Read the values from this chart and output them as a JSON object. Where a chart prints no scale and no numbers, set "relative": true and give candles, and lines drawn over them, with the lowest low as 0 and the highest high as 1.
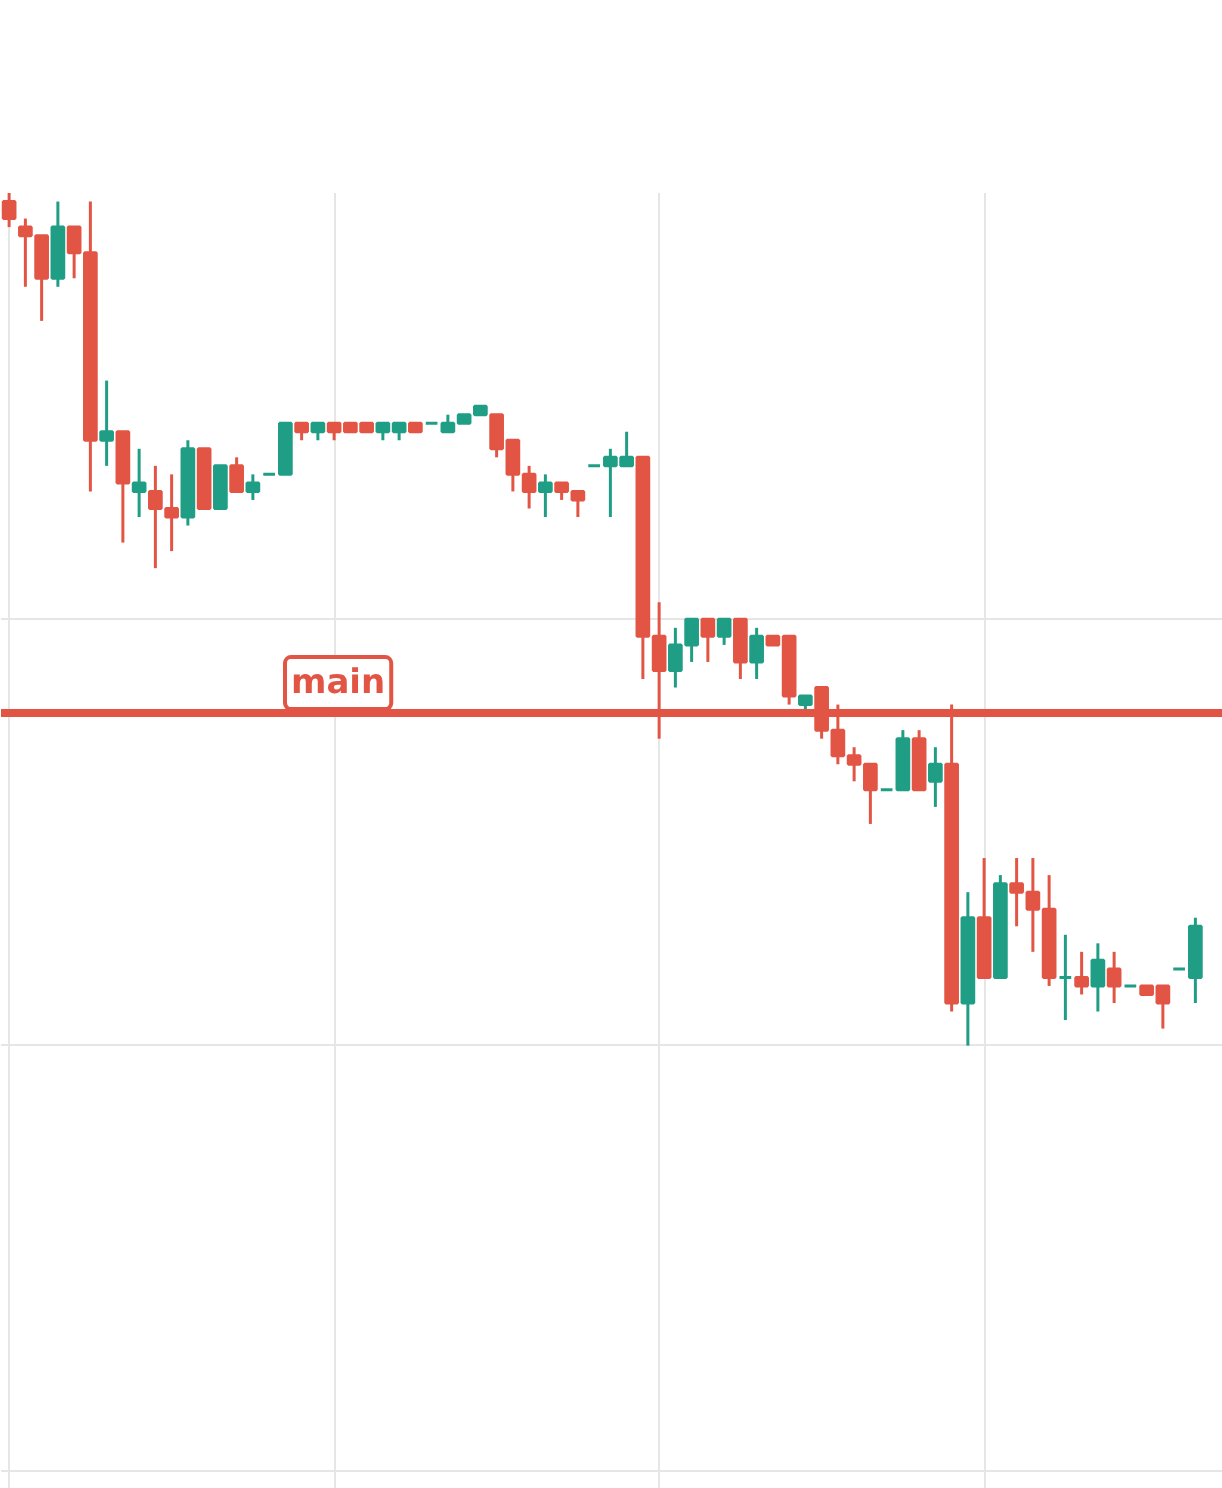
{
  "chart_data": {
    "type": "candlestick",
    "relative": true,
    "grid": true,
    "tick_labels": false,
    "categories": [
      null,
      null,
      null,
      null,
      null,
      null,
      null,
      null,
      null,
      null,
      null,
      null,
      null,
      null,
      null,
      null,
      null,
      null,
      null,
      null,
      null,
      null,
      null,
      null,
      null,
      null,
      null,
      null,
      null,
      null,
      null,
      null,
      null,
      null,
      null,
      null,
      null,
      null,
      null,
      null,
      null,
      null,
      null,
      null,
      null,
      null,
      null,
      null,
      null,
      null,
      null,
      null,
      null,
      null,
      null,
      null,
      null,
      null,
      null,
      null,
      null,
      null,
      null,
      null,
      null,
      null,
      null,
      null,
      null,
      null,
      null,
      null,
      null,
      null
    ],
    "ohlc": [
      [
        0.99,
        1.0,
        0.96,
        0.97
      ],
      [
        0.96,
        0.97,
        0.89,
        0.95
      ],
      [
        0.95,
        0.95,
        0.85,
        0.9
      ],
      [
        0.9,
        0.99,
        0.89,
        0.96
      ],
      [
        0.96,
        0.96,
        0.9,
        0.93
      ],
      [
        0.93,
        0.99,
        0.65,
        0.71
      ],
      [
        0.71,
        0.78,
        0.68,
        0.72
      ],
      [
        0.72,
        0.72,
        0.59,
        0.66
      ],
      [
        0.65,
        0.7,
        0.62,
        0.66
      ],
      [
        0.65,
        0.68,
        0.56,
        0.63
      ],
      [
        0.63,
        0.67,
        0.58,
        0.62
      ],
      [
        0.62,
        0.71,
        0.61,
        0.7
      ],
      [
        0.7,
        0.7,
        0.63,
        0.63
      ],
      [
        0.63,
        0.68,
        0.63,
        0.68
      ],
      [
        0.68,
        0.69,
        0.65,
        0.65
      ],
      [
        0.65,
        0.67,
        0.64,
        0.66
      ],
      [
        0.67,
        0.67,
        0.67,
        0.67
      ],
      [
        0.67,
        0.73,
        0.67,
        0.73
      ],
      [
        0.73,
        0.73,
        0.71,
        0.72
      ],
      [
        0.72,
        0.73,
        0.71,
        0.73
      ],
      [
        0.73,
        0.73,
        0.71,
        0.72
      ],
      [
        0.73,
        0.73,
        0.72,
        0.72
      ],
      [
        0.73,
        0.73,
        0.72,
        0.72
      ],
      [
        0.72,
        0.73,
        0.71,
        0.73
      ],
      [
        0.72,
        0.73,
        0.71,
        0.73
      ],
      [
        0.73,
        0.73,
        0.72,
        0.72
      ],
      [
        0.73,
        0.73,
        0.73,
        0.73
      ],
      [
        0.72,
        0.74,
        0.72,
        0.73
      ],
      [
        0.73,
        0.74,
        0.73,
        0.74
      ],
      [
        0.74,
        0.75,
        0.74,
        0.75
      ],
      [
        0.74,
        0.74,
        0.69,
        0.7
      ],
      [
        0.71,
        0.71,
        0.65,
        0.67
      ],
      [
        0.67,
        0.68,
        0.63,
        0.65
      ],
      [
        0.65,
        0.67,
        0.62,
        0.66
      ],
      [
        0.66,
        0.66,
        0.64,
        0.65
      ],
      [
        0.65,
        0.65,
        0.62,
        0.64
      ],
      [
        0.68,
        0.68,
        0.68,
        0.68
      ],
      [
        0.68,
        0.7,
        0.62,
        0.69
      ],
      [
        0.68,
        0.72,
        0.68,
        0.69
      ],
      [
        0.69,
        0.69,
        0.43,
        0.48
      ],
      [
        0.48,
        0.52,
        0.36,
        0.44
      ],
      [
        0.44,
        0.49,
        0.42,
        0.47
      ],
      [
        0.47,
        0.5,
        0.45,
        0.5
      ],
      [
        0.5,
        0.5,
        0.45,
        0.48
      ],
      [
        0.48,
        0.5,
        0.47,
        0.5
      ],
      [
        0.5,
        0.5,
        0.43,
        0.45
      ],
      [
        0.45,
        0.49,
        0.43,
        0.48
      ],
      [
        0.48,
        0.48,
        0.47,
        0.47
      ],
      [
        0.48,
        0.48,
        0.4,
        0.41
      ],
      [
        0.4,
        0.41,
        0.39,
        0.41
      ],
      [
        0.42,
        0.42,
        0.36,
        0.37
      ],
      [
        0.37,
        0.4,
        0.33,
        0.34
      ],
      [
        0.34,
        0.35,
        0.31,
        0.33
      ],
      [
        0.33,
        0.33,
        0.26,
        0.3
      ],
      [
        0.3,
        0.3,
        0.3,
        0.3
      ],
      [
        0.3,
        0.37,
        0.3,
        0.36
      ],
      [
        0.36,
        0.37,
        0.3,
        0.3
      ],
      [
        0.31,
        0.35,
        0.28,
        0.33
      ],
      [
        0.33,
        0.4,
        0.04,
        0.05
      ],
      [
        0.05,
        0.18,
        0.0,
        0.15
      ],
      [
        0.15,
        0.22,
        0.08,
        0.08
      ],
      [
        0.08,
        0.2,
        0.08,
        0.19
      ],
      [
        0.19,
        0.22,
        0.14,
        0.18
      ],
      [
        0.18,
        0.22,
        0.11,
        0.16
      ],
      [
        0.16,
        0.2,
        0.07,
        0.08
      ],
      [
        0.08,
        0.13,
        0.03,
        0.08
      ],
      [
        0.08,
        0.11,
        0.06,
        0.07
      ],
      [
        0.07,
        0.12,
        0.04,
        0.1
      ],
      [
        0.09,
        0.11,
        0.05,
        0.07
      ],
      [
        0.07,
        0.07,
        0.07,
        0.07
      ],
      [
        0.07,
        0.07,
        0.06,
        0.06
      ],
      [
        0.07,
        0.07,
        0.02,
        0.05
      ],
      [
        0.09,
        0.09,
        0.09,
        0.09
      ],
      [
        0.08,
        0.15,
        0.05,
        0.14
      ]
    ],
    "colors": [
      "#e25544",
      "#e25544",
      "#e25544",
      "#1f9e85",
      "#e25544",
      "#e25544",
      "#1f9e85",
      "#e25544",
      "#1f9e85",
      "#e25544",
      "#e25544",
      "#1f9e85",
      "#e25544",
      "#1f9e85",
      "#e25544",
      "#1f9e85",
      "#1f9e85",
      "#1f9e85",
      "#e25544",
      "#1f9e85",
      "#e25544",
      "#e25544",
      "#e25544",
      "#1f9e85",
      "#1f9e85",
      "#e25544",
      "#1f9e85",
      "#1f9e85",
      "#1f9e85",
      "#1f9e85",
      "#e25544",
      "#e25544",
      "#e25544",
      "#1f9e85",
      "#e25544",
      "#e25544",
      "#1f9e85",
      "#1f9e85",
      "#1f9e85",
      "#e25544",
      "#e25544",
      "#1f9e85",
      "#1f9e85",
      "#e25544",
      "#1f9e85",
      "#e25544",
      "#1f9e85",
      "#e25544",
      "#e25544",
      "#1f9e85",
      "#e25544",
      "#e25544",
      "#e25544",
      "#e25544",
      "#1f9e85",
      "#1f9e85",
      "#e25544",
      "#1f9e85",
      "#e25544",
      "#1f9e85",
      "#e25544",
      "#1f9e85",
      "#e25544",
      "#e25544",
      "#e25544",
      "#1f9e85",
      "#e25544",
      "#1f9e85",
      "#e25544",
      "#1f9e85",
      "#e25544",
      "#e25544",
      "#1f9e85",
      "#1f9e85"
    ],
    "ref_lines": [
      {
        "axis": "y",
        "value": 0.39,
        "label": "main",
        "color": "#e25544"
      }
    ]
  }
}
